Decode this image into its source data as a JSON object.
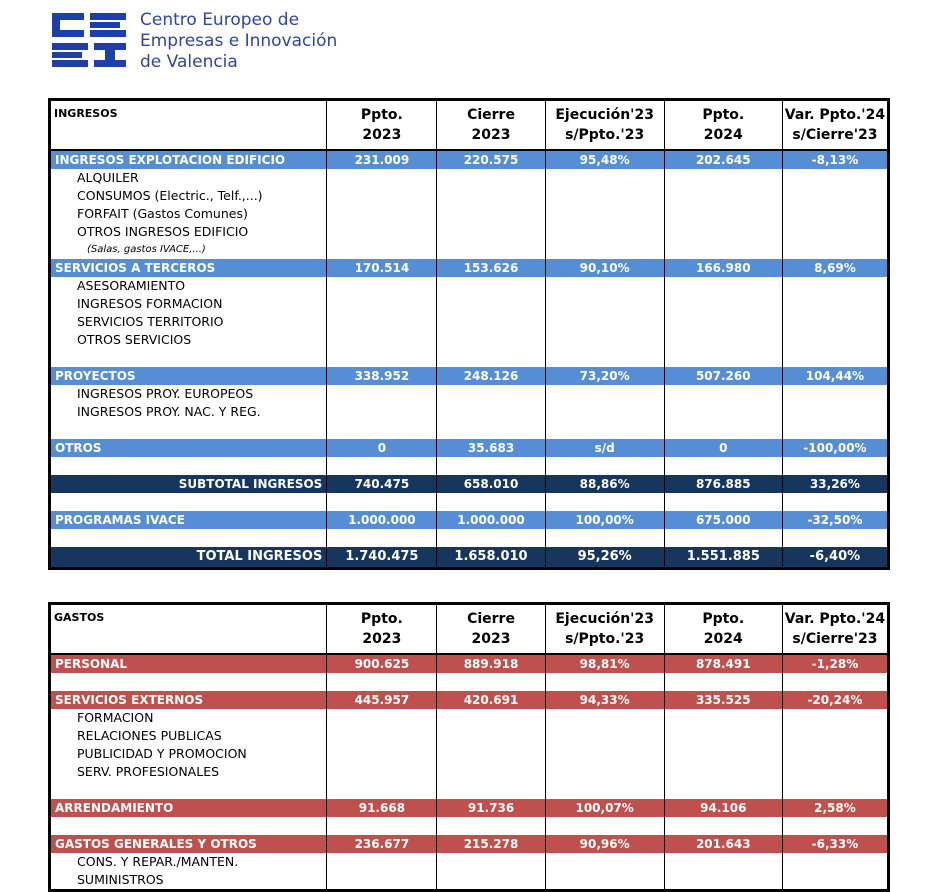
{
  "header": {
    "org_name": [
      "Centro Europeo de",
      "Empresas e Innovación",
      "de Valencia"
    ]
  },
  "ingresos": {
    "columns": [
      "INGRESOS",
      [
        "Ppto.",
        "2023"
      ],
      [
        "Cierre",
        "2023"
      ],
      [
        "Ejecución'23",
        "s/Ppto.'23"
      ],
      [
        "Ppto.",
        "2024"
      ],
      [
        "Var. Ppto.'24",
        "s/Cierre'23"
      ]
    ],
    "rows": [
      {
        "label": "INGRESOS EXPLOTACION EDIFICIO",
        "values": [
          "231.009",
          "220.575",
          "95,48%",
          "202.645",
          "-8,13%"
        ]
      },
      {
        "label": "ALQUILER"
      },
      {
        "label": "CONSUMOS (Electric., Telf.,...)"
      },
      {
        "label": "FORFAIT (Gastos Comunes)"
      },
      {
        "label": "OTROS INGRESOS EDIFICIO"
      },
      {
        "label": "(Salas, gastos IVACE,...)"
      },
      {
        "label": "SERVICIOS A TERCEROS",
        "values": [
          "170.514",
          "153.626",
          "90,10%",
          "166.980",
          "8,69%"
        ]
      },
      {
        "label": "ASESORAMIENTO"
      },
      {
        "label": "INGRESOS FORMACION"
      },
      {
        "label": "SERVICIOS TERRITORIO"
      },
      {
        "label": "OTROS SERVICIOS"
      },
      {
        "label": "PROYECTOS",
        "values": [
          "338.952",
          "248.126",
          "73,20%",
          "507.260",
          "104,44%"
        ]
      },
      {
        "label": "INGRESOS PROY. EUROPEOS"
      },
      {
        "label": "INGRESOS PROY. NAC. Y REG."
      },
      {
        "label": "OTROS",
        "values": [
          "0",
          "35.683",
          "s/d",
          "0",
          "-100,00%"
        ]
      },
      {
        "label": "SUBTOTAL INGRESOS",
        "values": [
          "740.475",
          "658.010",
          "88,86%",
          "876.885",
          "33,26%"
        ]
      },
      {
        "label": "PROGRAMAS IVACE",
        "values": [
          "1.000.000",
          "1.000.000",
          "100,00%",
          "675.000",
          "-32,50%"
        ]
      },
      {
        "label": "TOTAL INGRESOS",
        "values": [
          "1.740.475",
          "1.658.010",
          "95,26%",
          "1.551.885",
          "-6,40%"
        ]
      }
    ]
  },
  "gastos": {
    "columns": [
      "GASTOS",
      [
        "Ppto.",
        "2023"
      ],
      [
        "Cierre",
        "2023"
      ],
      [
        "Ejecución'23",
        "s/Ppto.'23"
      ],
      [
        "Ppto.",
        "2024"
      ],
      [
        "Var. Ppto.'24",
        "s/Cierre'23"
      ]
    ],
    "rows": [
      {
        "label": "PERSONAL",
        "values": [
          "900.625",
          "889.918",
          "98,81%",
          "878.491",
          "-1,28%"
        ]
      },
      {
        "label": "SERVICIOS EXTERNOS",
        "values": [
          "445.957",
          "420.691",
          "94,33%",
          "335.525",
          "-20,24%"
        ]
      },
      {
        "label": "FORMACION"
      },
      {
        "label": "RELACIONES PUBLICAS"
      },
      {
        "label": "PUBLICIDAD Y PROMOCION"
      },
      {
        "label": "SERV. PROFESIONALES"
      },
      {
        "label": "ARRENDAMIENTO",
        "values": [
          "91.668",
          "91.736",
          "100,07%",
          "94.106",
          "2,58%"
        ]
      },
      {
        "label": "GASTOS GENERALES Y OTROS",
        "values": [
          "236.677",
          "215.278",
          "90,96%",
          "201.643",
          "-6,33%"
        ]
      },
      {
        "label": "CONS. Y REPAR./MANTEN."
      },
      {
        "label": "SUMINISTROS"
      }
    ]
  }
}
